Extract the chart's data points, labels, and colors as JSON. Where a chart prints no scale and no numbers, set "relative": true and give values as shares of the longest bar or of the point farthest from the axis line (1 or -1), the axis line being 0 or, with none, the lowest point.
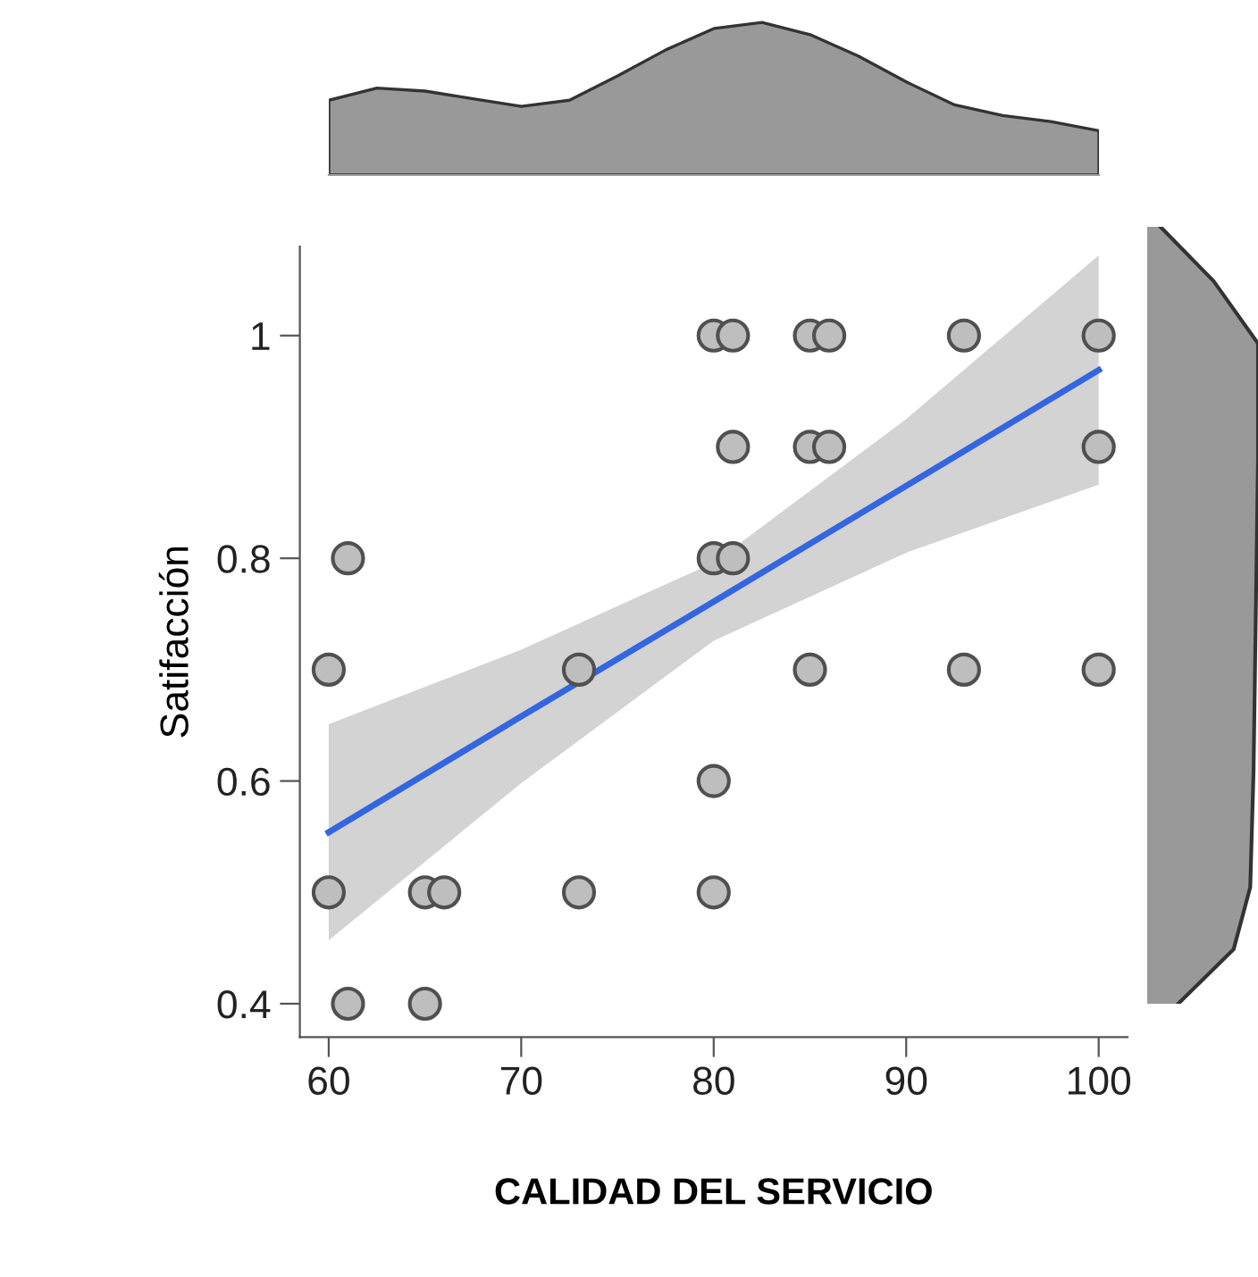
{
  "chart_data": [
    {
      "type": "scatter",
      "xlabel": "CALIDAD DEL SERVICIO",
      "ylabel": "Satifacción",
      "xlim": [
        58.5,
        101.5
      ],
      "ylim": [
        0.37,
        1.08
      ],
      "xticks": [
        60,
        70,
        80,
        90,
        100
      ],
      "yticks": [
        0.4,
        0.6,
        0.8,
        1
      ],
      "grid": false,
      "series": [
        {
          "type": "scatter",
          "marker": "circle",
          "color": "#bebebe",
          "x": [
            80,
            81,
            85,
            86,
            93,
            100,
            81,
            85,
            86,
            100,
            61,
            80,
            81,
            60,
            73,
            85,
            93,
            100,
            80,
            60,
            65,
            66,
            73,
            80,
            61,
            65
          ],
          "values": [
            1,
            1,
            1,
            1,
            1,
            1,
            0.9,
            0.9,
            0.9,
            0.9,
            0.8,
            0.8,
            0.8,
            0.7,
            0.7,
            0.7,
            0.7,
            0.7,
            0.6,
            0.5,
            0.5,
            0.5,
            0.5,
            0.5,
            0.4,
            0.4
          ]
        },
        {
          "type": "line",
          "color": "#3366e0",
          "x": [
            60,
            70,
            80,
            90,
            100
          ],
          "values": [
            0.554,
            0.658,
            0.761,
            0.865,
            0.969
          ],
          "lower": [
            0.457,
            0.598,
            0.726,
            0.805,
            0.866
          ],
          "upper": [
            0.651,
            0.718,
            0.796,
            0.925,
            1.072
          ]
        }
      ]
    },
    {
      "type": "area",
      "relative": true,
      "color": "#999999",
      "categories": [
        null,
        null,
        null,
        null,
        null,
        null,
        null,
        null,
        null,
        null,
        null,
        null,
        null,
        null,
        null,
        null,
        null
      ],
      "values": [
        0.49,
        0.57,
        0.55,
        0.5,
        0.45,
        0.49,
        0.65,
        0.82,
        0.96,
        1,
        0.92,
        0.78,
        0.61,
        0.46,
        0.39,
        0.35,
        0.29
      ]
    }
  ]
}
